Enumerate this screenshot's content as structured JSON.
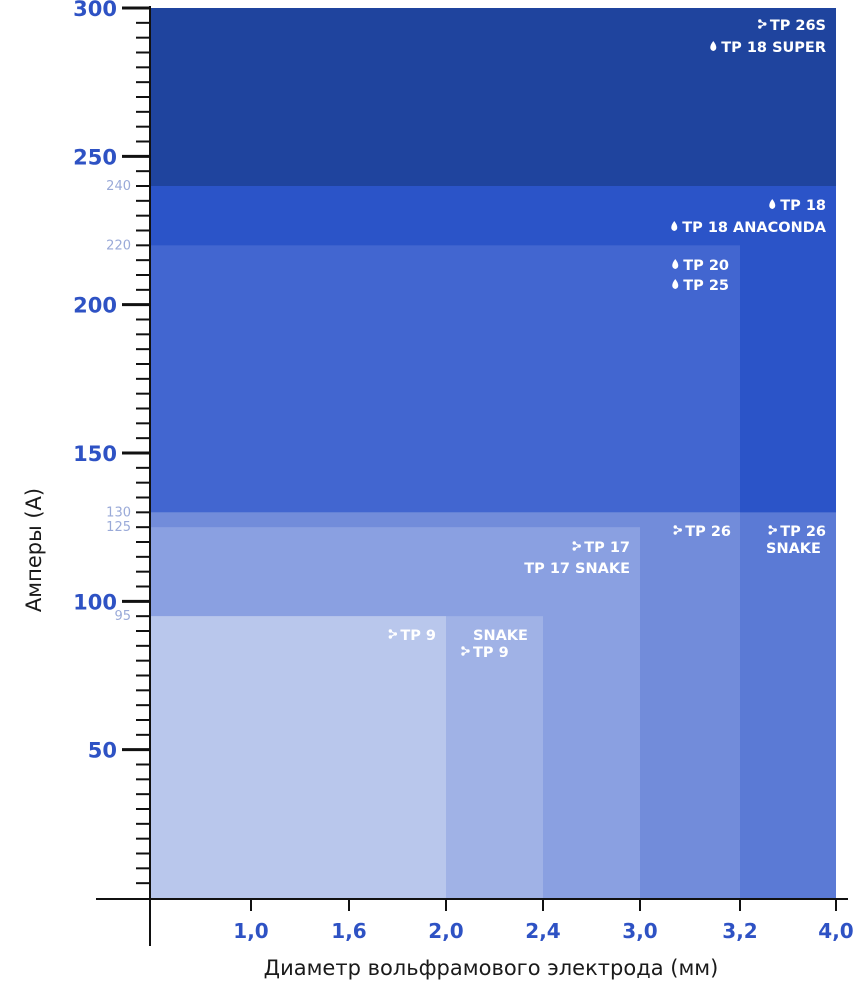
{
  "chart_data": {
    "type": "bar",
    "xlabel": "Диаметр вольфрамового электрода (мм)",
    "ylabel": "Амперы (А)",
    "xlim": [
      0,
      4.0
    ],
    "ylim": [
      0,
      300
    ],
    "x_ticks": [
      {
        "value": 1.0,
        "label": "1,0"
      },
      {
        "value": 1.6,
        "label": "1,6"
      },
      {
        "value": 2.0,
        "label": "2,0"
      },
      {
        "value": 2.4,
        "label": "2,4"
      },
      {
        "value": 3.0,
        "label": "3,0"
      },
      {
        "value": 3.2,
        "label": "3,2"
      },
      {
        "value": 4.0,
        "label": "4,0"
      }
    ],
    "x_positions": [
      0,
      1.0,
      1.6,
      2.0,
      2.4,
      3.0,
      3.2,
      4.0
    ],
    "y_major_ticks": [
      {
        "value": 50,
        "label": "50"
      },
      {
        "value": 100,
        "label": "100"
      },
      {
        "value": 150,
        "label": "150"
      },
      {
        "value": 200,
        "label": "200"
      },
      {
        "value": 250,
        "label": "250"
      },
      {
        "value": 300,
        "label": "300"
      }
    ],
    "y_minor_labels": [
      {
        "value": 95,
        "label": "95"
      },
      {
        "value": 125,
        "label": "125"
      },
      {
        "value": 130,
        "label": "130"
      },
      {
        "value": 220,
        "label": "220"
      },
      {
        "value": 240,
        "label": "240"
      }
    ],
    "y_minor_tick_step": 5,
    "series": [
      {
        "labels": [
          "TP 26S",
          "TP 18 SUPER"
        ],
        "icons": [
          "air-cooled-icon",
          "water-cooled-icon"
        ],
        "max_diameter": 4.0,
        "max_current": 300,
        "color": "#1f449e"
      },
      {
        "labels": [
          "TP 18",
          "TP 18 ANACONDA"
        ],
        "icons": [
          "water-cooled-icon",
          "water-cooled-icon"
        ],
        "max_diameter": 4.0,
        "max_current": 240,
        "color": "#2b54c8"
      },
      {
        "labels": [
          "TP 20",
          "TP 25"
        ],
        "icons": [
          "water-cooled-icon",
          "water-cooled-icon"
        ],
        "max_diameter": 3.2,
        "max_current": 220,
        "color": "#4266d0"
      },
      {
        "labels": [
          "TP 26 SNAKE"
        ],
        "icons": [
          "air-cooled-icon"
        ],
        "max_diameter": 4.0,
        "max_current": 130,
        "color": "#5b7ad5"
      },
      {
        "labels": [
          "TP 26"
        ],
        "icons": [
          "air-cooled-icon"
        ],
        "max_diameter": 3.2,
        "max_current": 130,
        "color": "#728cda"
      },
      {
        "labels": [
          "TP 17",
          "TP 17 SNAKE"
        ],
        "icons": [
          "air-cooled-icon",
          null
        ],
        "max_diameter": 3.0,
        "max_current": 125,
        "color": "#8aa0e1"
      },
      {
        "labels": [
          "TP 9 SNAKE"
        ],
        "icons": [
          "air-cooled-icon"
        ],
        "max_diameter": 2.4,
        "max_current": 95,
        "color": "#a0b2e6"
      },
      {
        "labels": [
          "TP 9"
        ],
        "icons": [
          "air-cooled-icon"
        ],
        "max_diameter": 2.0,
        "max_current": 95,
        "color": "#b9c7ec"
      }
    ],
    "series_label_lines": [
      {
        "text": "TP 26S",
        "icon": "air-cooled-icon",
        "series": 0
      },
      {
        "text": "TP 18 SUPER",
        "icon": "water-cooled-icon",
        "series": 0
      },
      {
        "text": "TP 18",
        "icon": "water-cooled-icon",
        "series": 1
      },
      {
        "text": "TP 18 ANACONDA",
        "icon": "water-cooled-icon",
        "series": 1
      },
      {
        "text": "TP 20",
        "icon": "water-cooled-icon",
        "series": 2
      },
      {
        "text": "TP 25",
        "icon": "water-cooled-icon",
        "series": 2
      },
      {
        "text": "TP 26",
        "icon": "air-cooled-icon",
        "series": 3
      },
      {
        "text": "SNAKE",
        "icon": null,
        "series": 3
      },
      {
        "text": "TP 26",
        "icon": "air-cooled-icon",
        "series": 4
      },
      {
        "text": "TP 17",
        "icon": "air-cooled-icon",
        "series": 5
      },
      {
        "text": "TP 17 SNAKE",
        "icon": null,
        "series": 5
      },
      {
        "text": "TP 9",
        "icon": "air-cooled-icon",
        "series": 6
      },
      {
        "text": "SNAKE",
        "icon": null,
        "series": 6
      },
      {
        "text": "TP 9",
        "icon": "air-cooled-icon",
        "series": 7
      }
    ],
    "axis_color": "#111111",
    "grid": false,
    "legend": "none"
  }
}
